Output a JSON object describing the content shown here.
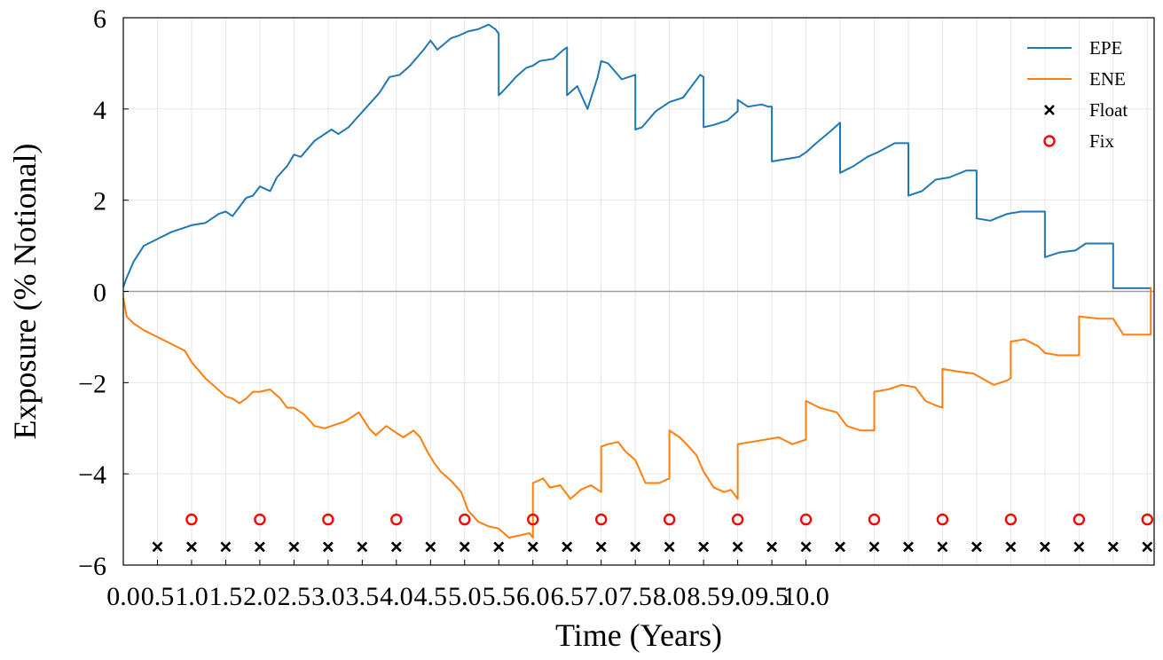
{
  "chart_data": {
    "type": "line",
    "xlabel": "Time (Years)",
    "ylabel": "Exposure (% Notional)",
    "xlim": [
      0.0,
      15.1
    ],
    "ylim": [
      -6,
      6
    ],
    "x_tick_labels": [
      "0.0",
      "0.5",
      "1.0",
      "1.5",
      "2.0",
      "2.5",
      "3.0",
      "3.5",
      "4.0",
      "4.5",
      "5.0",
      "5.5",
      "6.0",
      "6.5",
      "7.0",
      "7.5",
      "8.0",
      "8.5",
      "9.0",
      "9.5",
      "10.0"
    ],
    "y_ticks": [
      -6,
      -4,
      -2,
      0,
      2,
      4,
      6
    ],
    "y_tick_labels": [
      "−6",
      "−4",
      "−2",
      "0",
      "2",
      "4",
      "6"
    ],
    "grid": true,
    "legend_position": "top-right",
    "colors": {
      "epe": "#1f77b4",
      "ene": "#ff7f0e",
      "float": "#000000",
      "fix": "#ff0000",
      "zero_line": "#9e9e9e"
    },
    "series": [
      {
        "name": "EPE",
        "kind": "line",
        "x": [
          0.0,
          0.05,
          0.15,
          0.3,
          0.5,
          0.7,
          1.0,
          1.2,
          1.4,
          1.5,
          1.6,
          1.7,
          1.8,
          1.9,
          2.0,
          2.15,
          2.25,
          2.4,
          2.5,
          2.6,
          2.8,
          2.95,
          3.05,
          3.15,
          3.3,
          3.45,
          3.6,
          3.75,
          3.9,
          4.05,
          4.2,
          4.4,
          4.5,
          4.6,
          4.8,
          4.9,
          5.05,
          5.2,
          5.35,
          5.45,
          5.5,
          5.5,
          5.6,
          5.75,
          5.9,
          6.0,
          6.1,
          6.3,
          6.45,
          6.5,
          6.5,
          6.65,
          6.8,
          6.95,
          7.0,
          7.1,
          7.3,
          7.5,
          7.5,
          7.6,
          7.8,
          7.95,
          8.0,
          8.2,
          8.45,
          8.5,
          8.5,
          8.65,
          8.85,
          9.0,
          9.0,
          9.15,
          9.35,
          9.45,
          9.5,
          9.5,
          9.7,
          9.9,
          10.0,
          10.15,
          10.35,
          10.5,
          10.5,
          10.7,
          10.9,
          11.05,
          11.3,
          11.5,
          11.5,
          11.7,
          11.9,
          12.1,
          12.35,
          12.5,
          12.5,
          12.7,
          12.95,
          13.15,
          13.3,
          13.5,
          13.5,
          13.7,
          13.95,
          14.1,
          14.25,
          14.5,
          14.5,
          14.75,
          15.0,
          15.05
        ],
        "y": [
          0.1,
          0.3,
          0.65,
          1.0,
          1.15,
          1.3,
          1.45,
          1.5,
          1.7,
          1.75,
          1.65,
          1.85,
          2.05,
          2.1,
          2.3,
          2.2,
          2.5,
          2.75,
          3.0,
          2.95,
          3.3,
          3.45,
          3.55,
          3.45,
          3.6,
          3.85,
          4.1,
          4.35,
          4.7,
          4.75,
          4.95,
          5.3,
          5.5,
          5.3,
          5.55,
          5.6,
          5.7,
          5.75,
          5.85,
          5.75,
          5.65,
          4.3,
          4.45,
          4.7,
          4.9,
          4.95,
          5.05,
          5.1,
          5.3,
          5.35,
          4.3,
          4.5,
          4.0,
          4.7,
          5.05,
          5.0,
          4.65,
          4.75,
          3.55,
          3.6,
          3.95,
          4.1,
          4.15,
          4.25,
          4.75,
          4.7,
          3.6,
          3.65,
          3.75,
          3.95,
          4.2,
          4.05,
          4.1,
          4.05,
          4.05,
          2.85,
          2.9,
          2.95,
          3.05,
          3.25,
          3.5,
          3.7,
          2.6,
          2.75,
          2.95,
          3.05,
          3.25,
          3.25,
          2.1,
          2.2,
          2.45,
          2.5,
          2.65,
          2.65,
          1.6,
          1.55,
          1.7,
          1.75,
          1.75,
          1.75,
          0.75,
          0.85,
          0.9,
          1.05,
          1.05,
          1.05,
          0.07,
          0.07,
          0.07,
          0.07
        ]
      },
      {
        "name": "ENE",
        "kind": "line",
        "x": [
          0.0,
          0.05,
          0.15,
          0.3,
          0.5,
          0.7,
          0.9,
          1.0,
          1.2,
          1.35,
          1.5,
          1.6,
          1.7,
          1.8,
          1.9,
          2.0,
          2.15,
          2.3,
          2.4,
          2.5,
          2.65,
          2.8,
          2.95,
          3.05,
          3.25,
          3.45,
          3.6,
          3.7,
          3.85,
          4.0,
          4.1,
          4.25,
          4.35,
          4.45,
          4.55,
          4.65,
          4.8,
          4.95,
          5.05,
          5.2,
          5.35,
          5.5,
          5.65,
          5.8,
          5.95,
          6.0,
          6.0,
          6.15,
          6.25,
          6.4,
          6.55,
          6.7,
          6.85,
          7.0,
          7.0,
          7.1,
          7.25,
          7.35,
          7.5,
          7.65,
          7.85,
          8.0,
          8.0,
          8.15,
          8.25,
          8.4,
          8.5,
          8.65,
          8.8,
          8.9,
          9.0,
          9.0,
          9.2,
          9.4,
          9.6,
          9.8,
          10.0,
          10.0,
          10.2,
          10.45,
          10.6,
          10.8,
          10.95,
          11.0,
          11.0,
          11.2,
          11.4,
          11.6,
          11.75,
          11.9,
          12.0,
          12.0,
          12.2,
          12.45,
          12.75,
          12.95,
          13.0,
          13.0,
          13.2,
          13.4,
          13.5,
          13.7,
          13.95,
          14.0,
          14.0,
          14.3,
          14.5,
          14.65,
          14.85,
          15.0,
          15.05,
          15.05
        ],
        "y": [
          -0.15,
          -0.55,
          -0.7,
          -0.85,
          -1.0,
          -1.15,
          -1.3,
          -1.55,
          -1.9,
          -2.1,
          -2.3,
          -2.35,
          -2.45,
          -2.35,
          -2.2,
          -2.2,
          -2.15,
          -2.35,
          -2.55,
          -2.55,
          -2.7,
          -2.95,
          -3.0,
          -2.95,
          -2.85,
          -2.65,
          -3.0,
          -3.15,
          -2.95,
          -3.1,
          -3.2,
          -3.05,
          -3.2,
          -3.5,
          -3.75,
          -3.95,
          -4.15,
          -4.4,
          -4.8,
          -5.05,
          -5.15,
          -5.2,
          -5.4,
          -5.35,
          -5.3,
          -5.4,
          -4.2,
          -4.1,
          -4.3,
          -4.25,
          -4.55,
          -4.35,
          -4.25,
          -4.4,
          -3.4,
          -3.35,
          -3.3,
          -3.5,
          -3.7,
          -4.2,
          -4.2,
          -4.1,
          -3.05,
          -3.2,
          -3.35,
          -3.6,
          -3.95,
          -4.3,
          -4.4,
          -4.35,
          -4.55,
          -3.35,
          -3.3,
          -3.25,
          -3.2,
          -3.35,
          -3.25,
          -2.4,
          -2.55,
          -2.65,
          -2.95,
          -3.05,
          -3.05,
          -3.05,
          -2.2,
          -2.15,
          -2.05,
          -2.1,
          -2.4,
          -2.5,
          -2.55,
          -1.7,
          -1.75,
          -1.8,
          -2.05,
          -1.95,
          -1.9,
          -1.1,
          -1.05,
          -1.2,
          -1.35,
          -1.4,
          -1.4,
          -1.4,
          -0.55,
          -0.6,
          -0.6,
          -0.95,
          -0.95,
          -0.95,
          -0.95,
          0.1
        ]
      },
      {
        "name": "Float",
        "kind": "scatter",
        "marker": "x",
        "x": [
          0.5,
          1.0,
          1.5,
          2.0,
          2.5,
          3.0,
          3.5,
          4.0,
          4.5,
          5.0,
          5.5,
          6.0,
          6.5,
          7.0,
          7.5,
          8.0,
          8.5,
          9.0,
          9.5,
          10.0,
          10.5,
          11.0,
          11.5,
          12.0,
          12.5,
          13.0,
          13.5,
          14.0,
          14.5,
          15.0
        ],
        "y": [
          -5.6,
          -5.6,
          -5.6,
          -5.6,
          -5.6,
          -5.6,
          -5.6,
          -5.6,
          -5.6,
          -5.6,
          -5.6,
          -5.6,
          -5.6,
          -5.6,
          -5.6,
          -5.6,
          -5.6,
          -5.6,
          -5.6,
          -5.6,
          -5.6,
          -5.6,
          -5.6,
          -5.6,
          -5.6,
          -5.6,
          -5.6,
          -5.6,
          -5.6,
          -5.6
        ]
      },
      {
        "name": "Fix",
        "kind": "scatter",
        "marker": "o",
        "x": [
          1.0,
          2.0,
          3.0,
          4.0,
          5.0,
          6.0,
          7.0,
          8.0,
          9.0,
          10.0,
          11.0,
          12.0,
          13.0,
          14.0,
          15.0
        ],
        "y": [
          -5.0,
          -5.0,
          -5.0,
          -5.0,
          -5.0,
          -5.0,
          -5.0,
          -5.0,
          -5.0,
          -5.0,
          -5.0,
          -5.0,
          -5.0,
          -5.0,
          -5.0
        ]
      }
    ]
  }
}
